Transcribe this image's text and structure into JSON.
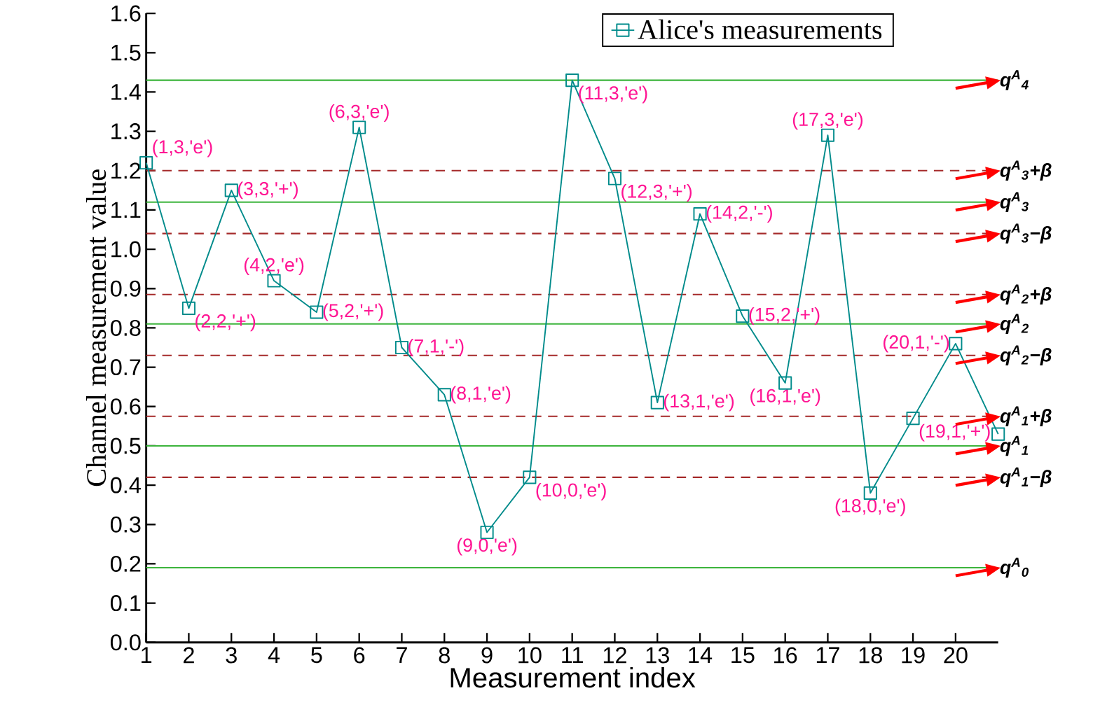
{
  "chart_data": {
    "type": "line",
    "xlabel": "Measurement index",
    "ylabel": "Channel measurement value",
    "x": [
      1,
      2,
      3,
      4,
      5,
      6,
      7,
      8,
      9,
      10,
      11,
      12,
      13,
      14,
      15,
      16,
      17,
      18,
      19,
      20,
      21
    ],
    "series": [
      {
        "name": "Alice's measurements",
        "color": "#008b8b",
        "values": [
          1.22,
          0.85,
          1.15,
          0.92,
          0.84,
          1.31,
          0.75,
          0.63,
          0.28,
          0.42,
          1.43,
          1.18,
          0.61,
          1.09,
          0.83,
          0.66,
          1.29,
          0.38,
          0.57,
          0.76,
          0.53
        ]
      }
    ],
    "xlim": [
      1,
      21
    ],
    "xticks": [
      1,
      2,
      3,
      4,
      5,
      6,
      7,
      8,
      9,
      10,
      11,
      12,
      13,
      14,
      15,
      16,
      17,
      18,
      19,
      20
    ],
    "ylim": [
      0,
      1.6
    ],
    "yticks": [
      {
        "value": 0,
        "label": "0.0"
      },
      0.1,
      0.2,
      0.3,
      0.4,
      0.5,
      0.6,
      0.7,
      0.8,
      0.9,
      {
        "value": 1,
        "label": "1.0"
      },
      1.1,
      1.2,
      1.3,
      1.4,
      1.5,
      1.6
    ],
    "marker": "square",
    "line_style": "solid",
    "legend": "top right",
    "grid": false,
    "ref_lines": [
      {
        "axis": "y",
        "value": 1.43,
        "label": "q$^{A}$$_{4}$",
        "color": "#3cb43c",
        "line_style": "solid"
      },
      {
        "axis": "y",
        "value": 1.2,
        "label": "q$^{A}$$_{3}$+β",
        "color": "#a52a2a",
        "line_style": "dashed"
      },
      {
        "axis": "y",
        "value": 1.12,
        "label": "q$^{A}$$_{3}$",
        "color": "#3cb43c",
        "line_style": "solid"
      },
      {
        "axis": "y",
        "value": 1.04,
        "label": "q$^{A}$$_{3}$−β",
        "color": "#a52a2a",
        "line_style": "dashed"
      },
      {
        "axis": "y",
        "value": 0.885,
        "label": "q$^{A}$$_{2}$+β",
        "color": "#a52a2a",
        "line_style": "dashed"
      },
      {
        "axis": "y",
        "value": 0.81,
        "label": "q$^{A}$$_{2}$",
        "color": "#3cb43c",
        "line_style": "solid"
      },
      {
        "axis": "y",
        "value": 0.73,
        "label": "q$^{A}$$_{2}$−β",
        "color": "#a52a2a",
        "line_style": "dashed"
      },
      {
        "axis": "y",
        "value": 0.575,
        "label": "q$^{A}$$_{1}$+β",
        "color": "#a52a2a",
        "line_style": "dashed"
      },
      {
        "axis": "y",
        "value": 0.5,
        "label": "q$^{A}$$_{1}$",
        "color": "#3cb43c",
        "line_style": "solid"
      },
      {
        "axis": "y",
        "value": 0.42,
        "label": "q$^{A}$$_{1}$−β",
        "color": "#a52a2a",
        "line_style": "dashed"
      },
      {
        "axis": "y",
        "value": 0.19,
        "label": "q$^{A}$$_{0}$",
        "color": "#3cb43c",
        "line_style": "solid"
      }
    ],
    "annotations": [
      {
        "text": "(1,3,'e')",
        "x": 1,
        "y": 1.22
      },
      {
        "text": "(2,2,'+')",
        "x": 2,
        "y": 0.85
      },
      {
        "text": "(3,3,'+')",
        "x": 3,
        "y": 1.15
      },
      {
        "text": "(4,2,'e')",
        "x": 4,
        "y": 0.92
      },
      {
        "text": "(5,2,'+')",
        "x": 5,
        "y": 0.84
      },
      {
        "text": "(6,3,'e')",
        "x": 6,
        "y": 1.31
      },
      {
        "text": "(7,1,'-')",
        "x": 7,
        "y": 0.75
      },
      {
        "text": "(8,1,'e')",
        "x": 8,
        "y": 0.63
      },
      {
        "text": "(9,0,'e')",
        "x": 9,
        "y": 0.28
      },
      {
        "text": "(10,0,'e')",
        "x": 10,
        "y": 0.42
      },
      {
        "text": "(11,3,'e')",
        "x": 11,
        "y": 1.43
      },
      {
        "text": "(12,3,'+')",
        "x": 12,
        "y": 1.18
      },
      {
        "text": "(13,1,'e')",
        "x": 13,
        "y": 0.61
      },
      {
        "text": "(14,2,'-')",
        "x": 14,
        "y": 1.09
      },
      {
        "text": "(15,2,'+')",
        "x": 15,
        "y": 0.83
      },
      {
        "text": "(16,1,'e')",
        "x": 16,
        "y": 0.66
      },
      {
        "text": "(17,3,'e')",
        "x": 17,
        "y": 1.29
      },
      {
        "text": "(18,0,'e')",
        "x": 18,
        "y": 0.38
      },
      {
        "text": "(19,1,'+')",
        "x": 19,
        "y": 0.57
      },
      {
        "text": "(20,1,'-')",
        "x": 20,
        "y": 0.76
      }
    ]
  }
}
